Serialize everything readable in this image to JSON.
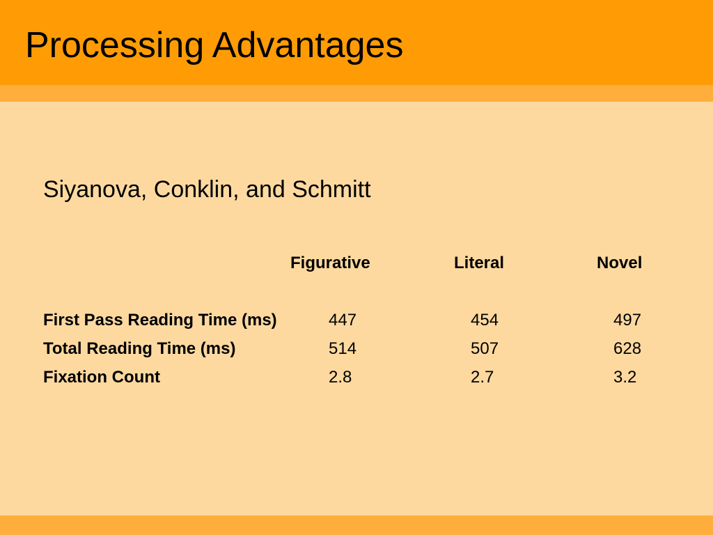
{
  "slide": {
    "title": "Processing Advantages",
    "subtitle": "Siyanova, Conklin, and Schmitt"
  },
  "table": {
    "columns": [
      "Figurative",
      "Literal",
      "Novel"
    ],
    "rows": [
      {
        "label": "First Pass Reading Time (ms)",
        "values": [
          "447",
          "454",
          "497"
        ]
      },
      {
        "label": "Total Reading Time (ms)",
        "values": [
          "514",
          "507",
          "628"
        ]
      },
      {
        "label": "Fixation Count",
        "values": [
          "2.8",
          "2.7",
          "3.2"
        ]
      }
    ]
  },
  "colors": {
    "title_bar": "#ff9c05",
    "accent_band": "#ffae3b",
    "background": "#fdd9a0"
  }
}
